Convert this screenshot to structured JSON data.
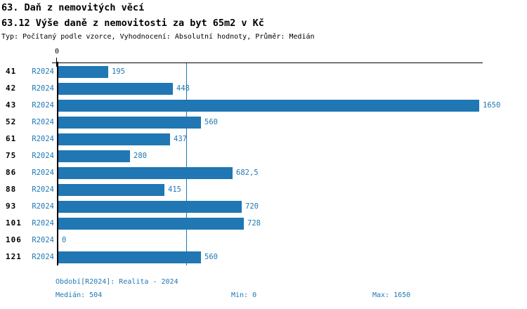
{
  "header": {
    "title": "63. Daň z nemovitých věcí",
    "subtitle": "63.12 Výše daně z nemovitosti za byt 65m2 v Kč",
    "meta": "Typ: Počítaný podle vzorce, Vyhodnocení: Absolutní hodnoty, Průměr: Medián"
  },
  "chart_data": {
    "type": "bar",
    "orientation": "horizontal",
    "categories": [
      "41",
      "42",
      "43",
      "52",
      "61",
      "75",
      "86",
      "88",
      "93",
      "101",
      "106",
      "121"
    ],
    "series": [
      {
        "name": "R2024",
        "values": [
          195,
          448,
          1650,
          560,
          437,
          280,
          682.5,
          415,
          720,
          728,
          0,
          560
        ],
        "value_labels": [
          "195",
          "448",
          "1650",
          "560",
          "437",
          "280",
          "682,5",
          "415",
          "720",
          "728",
          "0",
          "560"
        ]
      }
    ],
    "xlim": [
      0,
      1650
    ],
    "x_tick_labels": [
      "0"
    ],
    "median_reference_line": 504,
    "grid": "single-median-line",
    "legend_position": "none",
    "bar_color": "#2077b4",
    "median_line_color": "#1f77b4",
    "label_color": "#1f77b4",
    "axis_color": "#000000"
  },
  "footer": {
    "period": "Období[R2024]: Realita - 2024",
    "median": "Medián: 504",
    "min": "Min: 0",
    "max": "Max: 1650"
  }
}
